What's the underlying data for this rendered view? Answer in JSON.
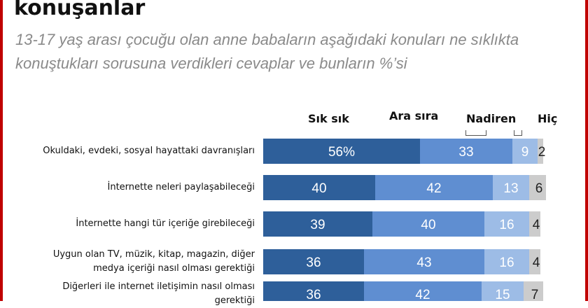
{
  "header": {
    "title": "konuşanlar",
    "subtitle": "13-17 yaş arası çocuğu olan anne babaların aşağıdaki konuları ne sıklıkta konuştukları sorusuna verdikleri cevaplar ve bunların %’si"
  },
  "colors": {
    "frame": "#c00000",
    "sik_sik": "#2e5f9a",
    "ara_sira": "#5f8ed1",
    "nadiren": "#9dbce6",
    "hic": "#cccccc"
  },
  "chart_data": {
    "type": "bar",
    "orientation": "horizontal",
    "stacked": true,
    "title": "",
    "xlabel": "",
    "ylabel": "",
    "xlim": [
      0,
      100
    ],
    "legend": "top",
    "categories": [
      [
        "Okuldaki, evdeki, sosyal hayattaki davranışları"
      ],
      [
        "İnternette neleri paylaşabileceği"
      ],
      [
        "İnternette hangi tür içeriğe girebileceği"
      ],
      [
        "Uygun olan TV, müzik, kitap, magazin, diğer",
        "medya içeriği nasıl olması gerektiği"
      ],
      [
        "Diğerleri ile internet iletişimin nasıl olması",
        "gerektiği"
      ]
    ],
    "series": [
      {
        "name": "Sık sık",
        "values": [
          56,
          40,
          39,
          36,
          36
        ],
        "labels": [
          "56%",
          "40",
          "39",
          "36",
          "36"
        ]
      },
      {
        "name": "Ara sıra",
        "values": [
          33,
          42,
          40,
          43,
          42
        ],
        "labels": [
          "33",
          "42",
          "40",
          "43",
          "42"
        ]
      },
      {
        "name": "Nadiren",
        "values": [
          9,
          13,
          16,
          16,
          15
        ],
        "labels": [
          "9",
          "13",
          "16",
          "16",
          "15"
        ]
      },
      {
        "name": "Hiç",
        "values": [
          2,
          6,
          4,
          4,
          7
        ],
        "labels": [
          "2",
          "6",
          "4",
          "4",
          "7"
        ]
      }
    ]
  }
}
